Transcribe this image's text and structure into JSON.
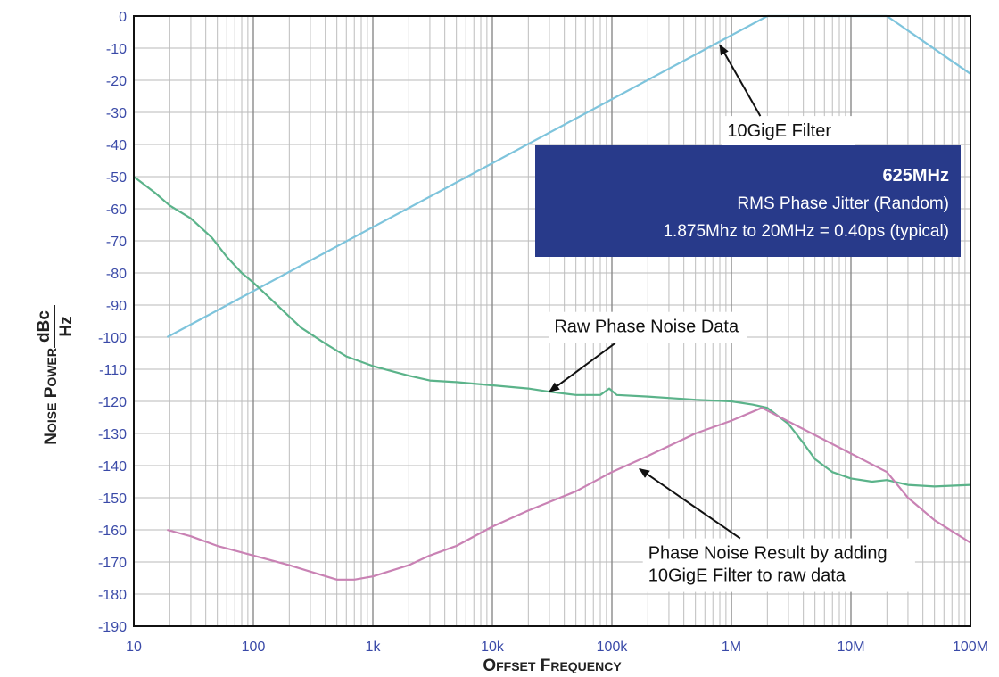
{
  "chart_data": {
    "type": "line",
    "x_scale": "log",
    "xlim": [
      10,
      100000000
    ],
    "ylim": [
      -190,
      0
    ],
    "xlabel_small_caps": [
      "Offset",
      "Frequency"
    ],
    "ylabel_small_caps": [
      "Noise",
      "Power"
    ],
    "ylabel_unit_numerator": "dBc",
    "ylabel_unit_denominator": "Hz",
    "x_ticks": [
      {
        "value": 10,
        "label": "10"
      },
      {
        "value": 100,
        "label": "100"
      },
      {
        "value": 1000,
        "label": "1k"
      },
      {
        "value": 10000,
        "label": "10k"
      },
      {
        "value": 100000,
        "label": "100k"
      },
      {
        "value": 1000000,
        "label": "1M"
      },
      {
        "value": 10000000,
        "label": "10M"
      },
      {
        "value": 100000000,
        "label": "100M"
      }
    ],
    "y_ticks": [
      0,
      -10,
      -20,
      -30,
      -40,
      -50,
      -60,
      -70,
      -80,
      -90,
      -100,
      -110,
      -120,
      -130,
      -140,
      -150,
      -160,
      -170,
      -180,
      -190
    ],
    "grid": true,
    "series": [
      {
        "key": "filter",
        "color": "#7ec4dc",
        "points": [
          [
            19,
            -100
          ],
          [
            2000000,
            0
          ],
          [
            20000000,
            0
          ],
          [
            100000000,
            -18
          ]
        ]
      },
      {
        "key": "raw",
        "color": "#5bb38a",
        "points": [
          [
            10,
            -50
          ],
          [
            15,
            -55
          ],
          [
            20,
            -59
          ],
          [
            30,
            -63
          ],
          [
            45,
            -69
          ],
          [
            60,
            -75
          ],
          [
            80,
            -80
          ],
          [
            100,
            -83
          ],
          [
            130,
            -87
          ],
          [
            180,
            -92
          ],
          [
            250,
            -97
          ],
          [
            400,
            -102
          ],
          [
            600,
            -106
          ],
          [
            1000,
            -109
          ],
          [
            2000,
            -112
          ],
          [
            3000,
            -113.5
          ],
          [
            5000,
            -114
          ],
          [
            10000,
            -115
          ],
          [
            20000,
            -116
          ],
          [
            30000,
            -117
          ],
          [
            50000,
            -118
          ],
          [
            80000,
            -118
          ],
          [
            95000,
            -116
          ],
          [
            110000,
            -118
          ],
          [
            200000,
            -118.5
          ],
          [
            500000,
            -119.5
          ],
          [
            1000000,
            -120
          ],
          [
            1500000,
            -121
          ],
          [
            2000000,
            -122
          ],
          [
            3000000,
            -127
          ],
          [
            4000000,
            -133
          ],
          [
            5000000,
            -138
          ],
          [
            7000000,
            -142
          ],
          [
            10000000,
            -144
          ],
          [
            15000000,
            -145
          ],
          [
            20000000,
            -144.5
          ],
          [
            30000000,
            -146
          ],
          [
            50000000,
            -146.5
          ],
          [
            100000000,
            -146
          ]
        ]
      },
      {
        "key": "result",
        "color": "#c982b4",
        "points": [
          [
            19,
            -160
          ],
          [
            30,
            -162
          ],
          [
            50,
            -165
          ],
          [
            100,
            -168
          ],
          [
            200,
            -171
          ],
          [
            300,
            -173
          ],
          [
            500,
            -175.5
          ],
          [
            700,
            -175.5
          ],
          [
            1000,
            -174.5
          ],
          [
            2000,
            -171
          ],
          [
            3000,
            -168
          ],
          [
            5000,
            -165
          ],
          [
            10000,
            -159
          ],
          [
            20000,
            -154
          ],
          [
            50000,
            -148
          ],
          [
            100000,
            -142
          ],
          [
            200000,
            -137
          ],
          [
            500000,
            -130
          ],
          [
            1000000,
            -126
          ],
          [
            1800000,
            -122
          ],
          [
            20000000,
            -142
          ],
          [
            30000000,
            -150
          ],
          [
            50000000,
            -157
          ],
          [
            100000000,
            -164
          ]
        ]
      }
    ],
    "annotations": [
      {
        "text": "10GigE Filter",
        "text_x": 3000000,
        "text_y": -36,
        "arrow_to": [
          800000,
          -9
        ]
      },
      {
        "text": "Raw Phase Noise Data",
        "text_x": 200000,
        "text_y": -97,
        "arrow_to": [
          30000,
          -117
        ]
      },
      {
        "lines": [
          "Phase Noise Result by adding",
          "10GigE Filter to raw data"
        ],
        "text_x": 2500000,
        "text_y": -171,
        "arrow_to": [
          170000,
          -141
        ]
      }
    ],
    "info_box": {
      "title": "625MHz",
      "line1": "RMS Phase Jitter  (Random)",
      "line2": "1.875Mhz to 20MHz = 0.40ps (typical)",
      "fill": "#283a8a"
    }
  }
}
